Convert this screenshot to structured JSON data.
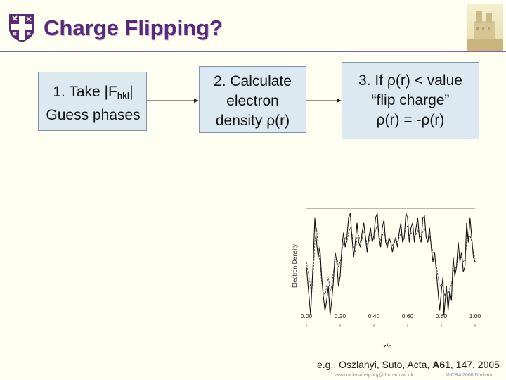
{
  "slide": {
    "title": "Charge Flipping?",
    "accent_color": "#5a2a78",
    "crest_icon": "university-crest-icon",
    "photo_icon": "building-photo-icon"
  },
  "steps": [
    {
      "lines": [
        "1. Take |F",
        "hkl",
        "|",
        "Guess phases"
      ]
    },
    {
      "lines": [
        "2. Calculate",
        "electron",
        "density ρ(r)"
      ]
    },
    {
      "lines": [
        "3. If ρ(r) < value",
        "“flip charge”",
        "ρ(r) = -ρ(r)"
      ]
    }
  ],
  "chart_data": {
    "type": "line",
    "xlabel": "z/c",
    "ylabel": "Electron Density",
    "x_ticks": [
      "0.00",
      "0.20",
      "0.40",
      "0.60",
      "0.80",
      "1.00"
    ],
    "xlim": [
      0,
      1
    ],
    "series": [
      {
        "values": [
          [
            0.0,
            0.3
          ],
          [
            0.01,
            0.1
          ],
          [
            0.02,
            -0.1
          ],
          [
            0.025,
            -0.2
          ],
          [
            0.03,
            0.0
          ],
          [
            0.04,
            0.35
          ],
          [
            0.05,
            0.8
          ],
          [
            0.06,
            0.55
          ],
          [
            0.07,
            0.4
          ],
          [
            0.08,
            0.5
          ],
          [
            0.09,
            0.2
          ],
          [
            0.1,
            0.0
          ],
          [
            0.11,
            -0.15
          ],
          [
            0.12,
            -0.05
          ],
          [
            0.13,
            0.1
          ],
          [
            0.14,
            -0.2
          ],
          [
            0.15,
            -0.05
          ],
          [
            0.16,
            0.15
          ],
          [
            0.17,
            0.45
          ],
          [
            0.18,
            0.35
          ],
          [
            0.19,
            0.1
          ],
          [
            0.2,
            0.2
          ],
          [
            0.21,
            0.5
          ],
          [
            0.22,
            0.65
          ],
          [
            0.23,
            0.5
          ],
          [
            0.24,
            0.6
          ],
          [
            0.25,
            0.8
          ],
          [
            0.26,
            0.85
          ],
          [
            0.27,
            0.6
          ],
          [
            0.28,
            0.4
          ],
          [
            0.29,
            0.55
          ],
          [
            0.3,
            0.75
          ],
          [
            0.31,
            0.55
          ],
          [
            0.32,
            0.5
          ],
          [
            0.33,
            0.65
          ],
          [
            0.34,
            0.75
          ],
          [
            0.35,
            0.6
          ],
          [
            0.36,
            0.45
          ],
          [
            0.37,
            0.6
          ],
          [
            0.38,
            0.7
          ],
          [
            0.39,
            0.55
          ],
          [
            0.4,
            0.62
          ],
          [
            0.41,
            0.8
          ],
          [
            0.42,
            0.85
          ],
          [
            0.43,
            0.6
          ],
          [
            0.44,
            0.5
          ],
          [
            0.45,
            0.7
          ],
          [
            0.46,
            0.78
          ],
          [
            0.47,
            0.55
          ],
          [
            0.48,
            0.5
          ],
          [
            0.49,
            0.6
          ],
          [
            0.5,
            0.55
          ],
          [
            0.51,
            0.45
          ],
          [
            0.52,
            0.55
          ],
          [
            0.53,
            0.6
          ],
          [
            0.54,
            0.5
          ],
          [
            0.55,
            0.65
          ],
          [
            0.56,
            0.75
          ],
          [
            0.57,
            0.55
          ],
          [
            0.58,
            0.6
          ],
          [
            0.59,
            0.85
          ],
          [
            0.6,
            0.8
          ],
          [
            0.61,
            0.55
          ],
          [
            0.62,
            0.7
          ],
          [
            0.63,
            0.75
          ],
          [
            0.64,
            0.55
          ],
          [
            0.65,
            0.7
          ],
          [
            0.66,
            0.8
          ],
          [
            0.67,
            0.6
          ],
          [
            0.68,
            0.55
          ],
          [
            0.69,
            0.8
          ],
          [
            0.7,
            0.82
          ],
          [
            0.71,
            0.6
          ],
          [
            0.72,
            0.55
          ],
          [
            0.73,
            0.7
          ],
          [
            0.74,
            0.5
          ],
          [
            0.75,
            0.35
          ],
          [
            0.76,
            0.45
          ],
          [
            0.77,
            0.25
          ],
          [
            0.78,
            0.05
          ],
          [
            0.79,
            -0.15
          ],
          [
            0.8,
            0.05
          ],
          [
            0.81,
            0.2
          ],
          [
            0.815,
            -0.2
          ],
          [
            0.82,
            -0.1
          ],
          [
            0.83,
            0.1
          ],
          [
            0.84,
            -0.15
          ],
          [
            0.85,
            0.05
          ],
          [
            0.86,
            -0.05
          ],
          [
            0.87,
            0.4
          ],
          [
            0.88,
            0.2
          ],
          [
            0.89,
            0.3
          ],
          [
            0.9,
            0.55
          ],
          [
            0.91,
            0.35
          ],
          [
            0.92,
            0.45
          ],
          [
            0.93,
            0.25
          ],
          [
            0.94,
            0.3
          ],
          [
            0.95,
            0.75
          ],
          [
            0.96,
            0.55
          ],
          [
            0.97,
            0.8
          ],
          [
            0.98,
            0.6
          ],
          [
            0.99,
            0.4
          ],
          [
            1.0,
            0.35
          ]
        ]
      },
      {
        "values": [
          [
            0.0,
            0.35
          ],
          [
            0.01,
            0.25
          ],
          [
            0.02,
            0.15
          ],
          [
            0.03,
            0.0
          ],
          [
            0.04,
            0.2
          ],
          [
            0.05,
            0.55
          ],
          [
            0.06,
            0.7
          ],
          [
            0.07,
            0.5
          ],
          [
            0.08,
            0.35
          ],
          [
            0.09,
            0.15
          ],
          [
            0.1,
            0.05
          ],
          [
            0.11,
            0.0
          ],
          [
            0.12,
            0.1
          ],
          [
            0.13,
            0.2
          ],
          [
            0.14,
            0.05
          ],
          [
            0.15,
            0.1
          ],
          [
            0.16,
            0.25
          ],
          [
            0.17,
            0.35
          ],
          [
            0.18,
            0.4
          ],
          [
            0.19,
            0.3
          ],
          [
            0.2,
            0.35
          ],
          [
            0.21,
            0.45
          ],
          [
            0.22,
            0.55
          ],
          [
            0.23,
            0.6
          ],
          [
            0.24,
            0.55
          ],
          [
            0.25,
            0.65
          ],
          [
            0.26,
            0.7
          ],
          [
            0.27,
            0.65
          ],
          [
            0.28,
            0.5
          ],
          [
            0.29,
            0.45
          ],
          [
            0.3,
            0.6
          ],
          [
            0.31,
            0.62
          ],
          [
            0.32,
            0.55
          ],
          [
            0.33,
            0.58
          ],
          [
            0.34,
            0.66
          ],
          [
            0.35,
            0.62
          ],
          [
            0.36,
            0.52
          ],
          [
            0.37,
            0.55
          ],
          [
            0.38,
            0.62
          ],
          [
            0.39,
            0.6
          ],
          [
            0.4,
            0.58
          ],
          [
            0.41,
            0.68
          ],
          [
            0.42,
            0.72
          ],
          [
            0.43,
            0.64
          ],
          [
            0.44,
            0.56
          ],
          [
            0.45,
            0.62
          ],
          [
            0.46,
            0.66
          ],
          [
            0.47,
            0.58
          ],
          [
            0.48,
            0.54
          ],
          [
            0.49,
            0.57
          ],
          [
            0.5,
            0.56
          ],
          [
            0.51,
            0.52
          ],
          [
            0.52,
            0.54
          ],
          [
            0.53,
            0.57
          ],
          [
            0.54,
            0.55
          ],
          [
            0.55,
            0.6
          ],
          [
            0.56,
            0.64
          ],
          [
            0.57,
            0.6
          ],
          [
            0.58,
            0.62
          ],
          [
            0.59,
            0.7
          ],
          [
            0.6,
            0.72
          ],
          [
            0.61,
            0.62
          ],
          [
            0.62,
            0.64
          ],
          [
            0.63,
            0.66
          ],
          [
            0.64,
            0.6
          ],
          [
            0.65,
            0.63
          ],
          [
            0.66,
            0.68
          ],
          [
            0.67,
            0.62
          ],
          [
            0.68,
            0.6
          ],
          [
            0.69,
            0.66
          ],
          [
            0.7,
            0.7
          ],
          [
            0.71,
            0.64
          ],
          [
            0.72,
            0.6
          ],
          [
            0.73,
            0.62
          ],
          [
            0.74,
            0.52
          ],
          [
            0.75,
            0.45
          ],
          [
            0.76,
            0.42
          ],
          [
            0.77,
            0.32
          ],
          [
            0.78,
            0.2
          ],
          [
            0.79,
            0.1
          ],
          [
            0.8,
            0.12
          ],
          [
            0.81,
            0.1
          ],
          [
            0.82,
            0.0
          ],
          [
            0.83,
            0.05
          ],
          [
            0.84,
            0.02
          ],
          [
            0.85,
            0.08
          ],
          [
            0.86,
            0.12
          ],
          [
            0.87,
            0.25
          ],
          [
            0.88,
            0.28
          ],
          [
            0.89,
            0.3
          ],
          [
            0.9,
            0.4
          ],
          [
            0.91,
            0.38
          ],
          [
            0.92,
            0.4
          ],
          [
            0.93,
            0.35
          ],
          [
            0.94,
            0.38
          ],
          [
            0.95,
            0.55
          ],
          [
            0.96,
            0.58
          ],
          [
            0.97,
            0.62
          ],
          [
            0.98,
            0.55
          ],
          [
            0.99,
            0.45
          ],
          [
            1.0,
            0.38
          ]
        ]
      }
    ]
  },
  "reference": {
    "prefix": "e.g., Oszlanyi, Suto, Acta, ",
    "volume": "A61",
    "suffix": ", 147, 2005"
  },
  "footer": {
    "left": "www.radiosafety.org@durham.ac.uk",
    "right": "MICRA 2006 Durham"
  }
}
